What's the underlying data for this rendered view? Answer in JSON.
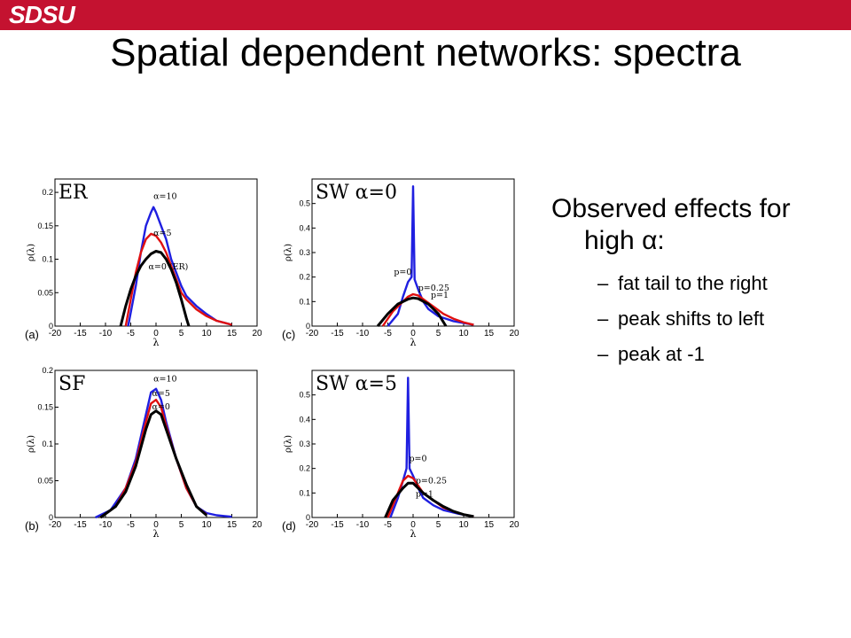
{
  "logo": {
    "text": "SDSU",
    "color": "#c41230"
  },
  "slide": {
    "title": "Spatial dependent networks: spectra"
  },
  "text_block": {
    "heading_prefix": "Observed effects for high ",
    "heading_symbol": "α",
    "heading_suffix": ":",
    "bullets": [
      "fat tail to the right",
      "peak shifts to left",
      "peak at -1"
    ]
  },
  "chart_data": [
    {
      "type": "line",
      "panel_letter": "(a)",
      "corner_label": "ER",
      "xlabel": "λ",
      "ylabel": "ρ(λ)",
      "xlim": [
        -20,
        20
      ],
      "ylim": [
        0,
        0.22
      ],
      "xticks": [
        -20,
        -15,
        -10,
        -5,
        0,
        5,
        10,
        15,
        20
      ],
      "yticks": [
        0,
        0.05,
        0.1,
        0.15,
        0.2
      ],
      "series": [
        {
          "name": "α=10",
          "color": "#1f1fe0",
          "x": [
            -5.5,
            -4,
            -3,
            -2,
            -1,
            -0.5,
            0,
            1,
            2,
            3,
            4,
            5,
            6,
            8,
            10,
            12,
            15
          ],
          "y": [
            0,
            0.06,
            0.11,
            0.15,
            0.17,
            0.178,
            0.17,
            0.15,
            0.13,
            0.1,
            0.08,
            0.06,
            0.045,
            0.03,
            0.018,
            0.008,
            0.002
          ]
        },
        {
          "name": "α=5",
          "color": "#e01010",
          "x": [
            -6,
            -5,
            -4,
            -3,
            -2,
            -1,
            0,
            1,
            2,
            3,
            4,
            5,
            6,
            8,
            10,
            12,
            15
          ],
          "y": [
            0,
            0.04,
            0.08,
            0.11,
            0.13,
            0.138,
            0.135,
            0.125,
            0.11,
            0.09,
            0.07,
            0.05,
            0.04,
            0.025,
            0.015,
            0.008,
            0.002
          ]
        },
        {
          "name": "α=0 (ER)",
          "color": "#000000",
          "x": [
            -7,
            -6,
            -5,
            -4,
            -3,
            -2,
            -1,
            0,
            1,
            2,
            3,
            4,
            5,
            6,
            6.5
          ],
          "y": [
            0,
            0.03,
            0.055,
            0.075,
            0.09,
            0.1,
            0.108,
            0.112,
            0.11,
            0.1,
            0.085,
            0.065,
            0.04,
            0.012,
            0
          ]
        }
      ],
      "annotations": [
        "α=10",
        "α=5",
        "α=0 (ER)"
      ]
    },
    {
      "type": "line",
      "panel_letter": "(c)",
      "corner_label": "SW α=0",
      "xlabel": "λ",
      "ylabel": "ρ(λ)",
      "xlim": [
        -20,
        20
      ],
      "ylim": [
        0,
        0.6
      ],
      "xticks": [
        -20,
        -15,
        -10,
        -5,
        0,
        5,
        10,
        15,
        20
      ],
      "yticks": [
        0,
        0.1,
        0.2,
        0.3,
        0.4,
        0.5
      ],
      "series": [
        {
          "name": "p=0",
          "color": "#1f1fe0",
          "x": [
            -5,
            -3,
            -2,
            -1,
            -0.3,
            0,
            0.3,
            1,
            2,
            3,
            5,
            8,
            12
          ],
          "y": [
            0,
            0.05,
            0.12,
            0.18,
            0.2,
            0.57,
            0.19,
            0.15,
            0.1,
            0.07,
            0.04,
            0.02,
            0.005
          ]
        },
        {
          "name": "p=0.25",
          "color": "#e01010",
          "x": [
            -6,
            -4,
            -2,
            -1,
            0,
            1,
            2,
            4,
            6,
            8,
            10,
            12
          ],
          "y": [
            0,
            0.06,
            0.1,
            0.12,
            0.13,
            0.125,
            0.11,
            0.08,
            0.05,
            0.03,
            0.015,
            0.005
          ]
        },
        {
          "name": "p=1",
          "color": "#000000",
          "x": [
            -7,
            -5,
            -3,
            -1,
            0,
            1,
            3,
            5,
            6.5
          ],
          "y": [
            0,
            0.05,
            0.09,
            0.11,
            0.115,
            0.112,
            0.09,
            0.05,
            0
          ]
        }
      ],
      "annotations": [
        "p=0",
        "p=0.25",
        "p=1"
      ]
    },
    {
      "type": "line",
      "panel_letter": "(b)",
      "corner_label": "SF",
      "xlabel": "λ",
      "ylabel": "ρ(λ)",
      "xlim": [
        -20,
        20
      ],
      "ylim": [
        0,
        0.2
      ],
      "xticks": [
        -20,
        -15,
        -10,
        -5,
        0,
        5,
        10,
        15,
        20
      ],
      "yticks": [
        0,
        0.05,
        0.1,
        0.15,
        0.2
      ],
      "series": [
        {
          "name": "α=10",
          "color": "#1f1fe0",
          "x": [
            -12,
            -9,
            -6,
            -4,
            -2,
            -1,
            0,
            1,
            2,
            4,
            6,
            8,
            10,
            12,
            15
          ],
          "y": [
            0,
            0.01,
            0.04,
            0.08,
            0.14,
            0.17,
            0.175,
            0.16,
            0.13,
            0.08,
            0.04,
            0.015,
            0.006,
            0.003,
            0.001
          ]
        },
        {
          "name": "α=5",
          "color": "#e01010",
          "x": [
            -11,
            -8,
            -6,
            -4,
            -2,
            -1,
            0,
            1,
            2,
            4,
            6,
            8,
            10
          ],
          "y": [
            0,
            0.015,
            0.04,
            0.075,
            0.13,
            0.155,
            0.16,
            0.15,
            0.125,
            0.08,
            0.04,
            0.015,
            0.004
          ]
        },
        {
          "name": "α=0",
          "color": "#000000",
          "x": [
            -11,
            -8,
            -6,
            -4,
            -2,
            -1,
            0,
            1,
            2,
            4,
            6,
            8,
            10
          ],
          "y": [
            0,
            0.015,
            0.035,
            0.07,
            0.12,
            0.14,
            0.145,
            0.14,
            0.12,
            0.08,
            0.045,
            0.015,
            0.003
          ]
        }
      ],
      "annotations": [
        "α=10",
        "α=5",
        "α=0"
      ]
    },
    {
      "type": "line",
      "panel_letter": "(d)",
      "corner_label": "SW α=5",
      "xlabel": "λ",
      "ylabel": "ρ(λ)",
      "xlim": [
        -20,
        20
      ],
      "ylim": [
        0,
        0.6
      ],
      "xticks": [
        -20,
        -15,
        -10,
        -5,
        0,
        5,
        10,
        15,
        20
      ],
      "yticks": [
        0,
        0.1,
        0.2,
        0.3,
        0.4,
        0.5
      ],
      "series": [
        {
          "name": "p=0",
          "color": "#1f1fe0",
          "x": [
            -4.5,
            -3,
            -2,
            -1.3,
            -1,
            -0.7,
            0,
            1,
            2,
            4,
            6,
            9,
            12
          ],
          "y": [
            0,
            0.08,
            0.15,
            0.2,
            0.57,
            0.2,
            0.17,
            0.12,
            0.08,
            0.05,
            0.03,
            0.015,
            0.004
          ]
        },
        {
          "name": "p=0.25",
          "color": "#e01010",
          "x": [
            -5,
            -3,
            -2,
            -1,
            0,
            1,
            2,
            4,
            6,
            8,
            10,
            12
          ],
          "y": [
            0,
            0.1,
            0.15,
            0.17,
            0.16,
            0.13,
            0.1,
            0.07,
            0.04,
            0.025,
            0.012,
            0.004
          ]
        },
        {
          "name": "p=1",
          "color": "#000000",
          "x": [
            -5.5,
            -4,
            -2,
            -1,
            0,
            1,
            2,
            4,
            6,
            8,
            10,
            12
          ],
          "y": [
            0,
            0.07,
            0.12,
            0.14,
            0.14,
            0.12,
            0.1,
            0.07,
            0.045,
            0.025,
            0.012,
            0.004
          ]
        }
      ],
      "annotations": [
        "p=0",
        "p=0.25",
        "p=1"
      ]
    }
  ]
}
